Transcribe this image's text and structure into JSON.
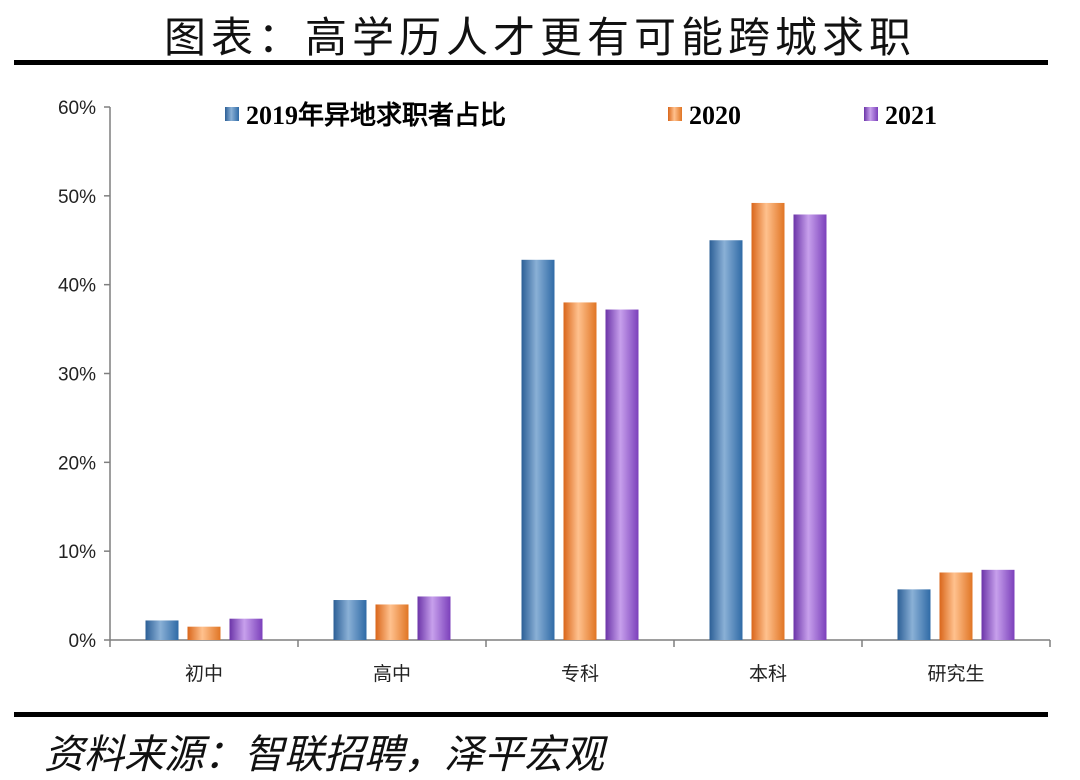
{
  "title": "图表：高学历人才更有可能跨城求职",
  "source": "资料来源：智联招聘，泽平宏观",
  "chart_data": {
    "type": "bar",
    "categories": [
      "初中",
      "高中",
      "专科",
      "本科",
      "研究生"
    ],
    "series": [
      {
        "name": "2019年异地求职者占比",
        "color": "#4f81bd",
        "values": [
          2.2,
          4.5,
          42.8,
          45.0,
          5.7
        ]
      },
      {
        "name": "2020",
        "color": "#f79646",
        "values": [
          1.5,
          4.0,
          38.0,
          49.2,
          7.6
        ]
      },
      {
        "name": "2021",
        "color": "#8e55c9",
        "values": [
          2.4,
          4.9,
          37.2,
          47.9,
          7.9
        ]
      }
    ],
    "ylim": [
      0,
      60
    ],
    "yticks": [
      0,
      10,
      20,
      30,
      40,
      50,
      60
    ],
    "ytick_labels": [
      "0%",
      "10%",
      "20%",
      "30%",
      "40%",
      "50%",
      "60%"
    ],
    "legend_position": "top",
    "grid": false
  }
}
